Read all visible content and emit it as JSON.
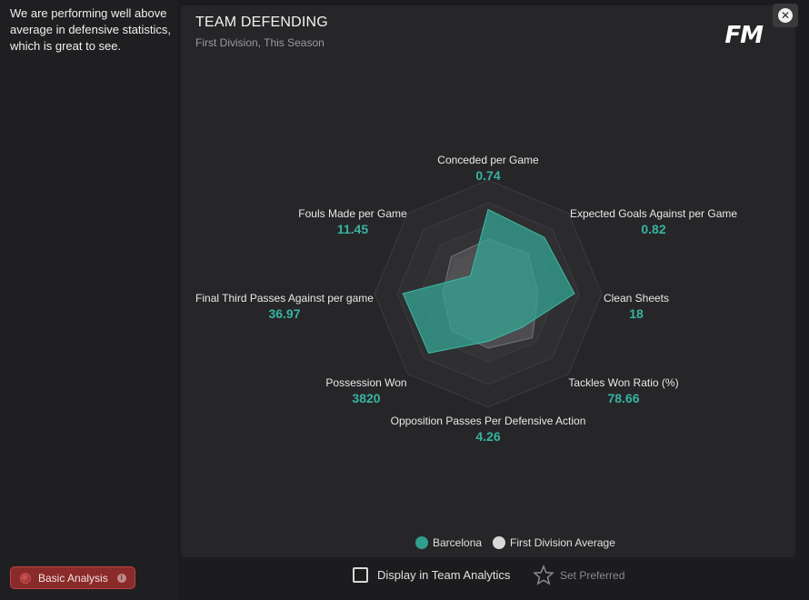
{
  "insight": {
    "text": "We are performing well above average in defensive statistics, which is great to see."
  },
  "basic_analysis": {
    "label": "Basic Analysis"
  },
  "panel": {
    "title": "TEAM DEFENDING",
    "subtitle": "First Division, This Season",
    "logo": "FM"
  },
  "close": {
    "icon": "close-icon"
  },
  "chart_data": {
    "type": "radar",
    "axes": [
      {
        "label": "Conceded per Game",
        "value": "0.74",
        "team": 0.74,
        "average": 0.48
      },
      {
        "label": "Expected Goals Against per Game",
        "value": "0.82",
        "team": 0.7,
        "average": 0.5
      },
      {
        "label": "Clean Sheets",
        "value": "18",
        "team": 0.76,
        "average": 0.44
      },
      {
        "label": "Tackles Won Ratio (%)",
        "value": "78.66",
        "team": 0.42,
        "average": 0.55
      },
      {
        "label": "Opposition Passes Per Defensive Action",
        "value": "4.26",
        "team": 0.42,
        "average": 0.48
      },
      {
        "label": "Possession Won",
        "value": "3820",
        "team": 0.74,
        "average": 0.46
      },
      {
        "label": "Final Third Passes Against per game",
        "value": "36.97",
        "team": 0.75,
        "average": 0.4
      },
      {
        "label": "Fouls Made per Game",
        "value": "11.45",
        "team": 0.22,
        "average": 0.46
      }
    ],
    "series": [
      {
        "name": "Barcelona",
        "color": "#2f9e8c"
      },
      {
        "name": "First Division Average",
        "color": "#d8d8d8"
      }
    ],
    "legend_position": "bottom"
  },
  "legend": {
    "team": "Barcelona",
    "average": "First Division Average"
  },
  "footer": {
    "display_label": "Display in Team Analytics",
    "preferred_label": "Set Preferred"
  }
}
